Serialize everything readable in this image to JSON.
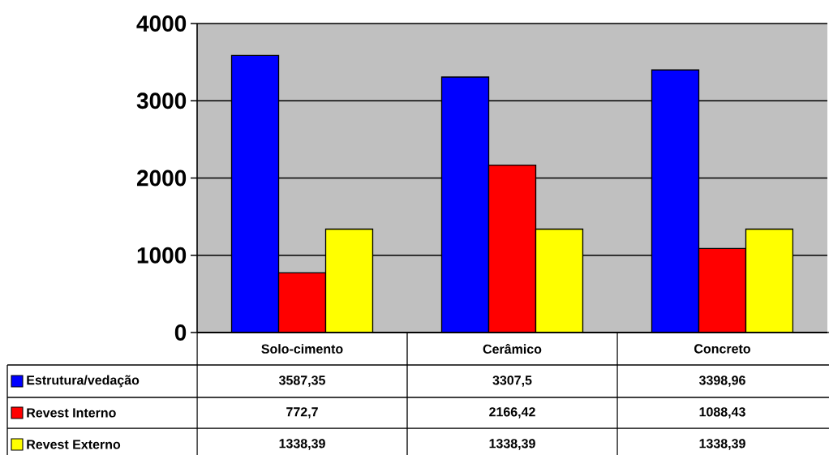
{
  "chart_data": {
    "type": "bar",
    "categories": [
      "Solo-cimento",
      "Cerâmico",
      "Concreto"
    ],
    "series": [
      {
        "name": "Estrutura/vedação",
        "color": "#0000ff",
        "values": [
          3587.35,
          3307.5,
          3398.96
        ],
        "value_labels": [
          "3587,35",
          "3307,5",
          "3398,96"
        ]
      },
      {
        "name": "Revest Interno",
        "color": "#ff0000",
        "values": [
          772.7,
          2166.42,
          1088.43
        ],
        "value_labels": [
          "772,7",
          "2166,42",
          "1088,43"
        ]
      },
      {
        "name": "Revest Externo",
        "color": "#ffff00",
        "values": [
          1338.39,
          1338.39,
          1338.39
        ],
        "value_labels": [
          "1338,39",
          "1338,39",
          "1338,39"
        ]
      }
    ],
    "ylim": [
      0,
      4000
    ],
    "yticks": [
      0,
      1000,
      2000,
      3000,
      4000
    ],
    "grid": "y",
    "legend": "bottom"
  }
}
